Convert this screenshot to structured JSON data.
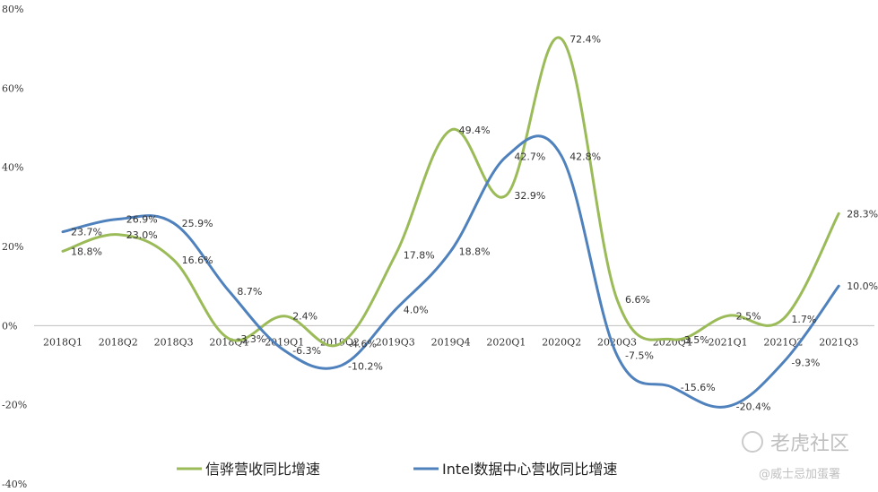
{
  "chart_data": {
    "type": "line",
    "categories": [
      "2018Q1",
      "2018Q2",
      "2018Q3",
      "2018Q4",
      "2019Q1",
      "2019Q2",
      "2019Q3",
      "2019Q4",
      "2020Q1",
      "2020Q2",
      "2020Q3",
      "2020Q4",
      "2021Q1",
      "2021Q2",
      "2021Q3"
    ],
    "series": [
      {
        "name": "信骅营收同比增速",
        "color": "#9bbb59",
        "values": [
          18.8,
          23.0,
          16.6,
          -3.3,
          2.4,
          -4.6,
          17.8,
          49.4,
          32.9,
          72.4,
          6.6,
          -3.5,
          2.5,
          1.7,
          28.3
        ],
        "labels": [
          "18.8%",
          "23.0%",
          "16.6%",
          "-3.3%",
          "2.4%",
          "-4.6%",
          "17.8%",
          "49.4%",
          "32.9%",
          "72.4%",
          "6.6%",
          "-3.5%",
          "2.5%",
          "1.7%",
          "28.3%"
        ]
      },
      {
        "name": "Intel数据中心营收同比增速",
        "color": "#4f81bd",
        "values": [
          23.7,
          26.9,
          25.9,
          8.7,
          -6.3,
          -10.2,
          4.0,
          18.8,
          42.7,
          42.8,
          -7.5,
          -15.6,
          -20.4,
          -9.3,
          10.0
        ],
        "labels": [
          "23.7%",
          "26.9%",
          "25.9%",
          "8.7%",
          "-6.3%",
          "-10.2%",
          "4.0%",
          "18.8%",
          "42.7%",
          "42.8%",
          "-7.5%",
          "-15.6%",
          "-20.4%",
          "-9.3%",
          "10.0%"
        ]
      }
    ],
    "yticks": [
      "80%",
      "60%",
      "40%",
      "20%",
      "0%",
      "-20%",
      "-40%"
    ],
    "ylim": [
      -40,
      80
    ],
    "grid": false,
    "legend": "bottom"
  },
  "watermark": {
    "line1": "老虎社区",
    "line2": "@威士忌加蛋署"
  }
}
